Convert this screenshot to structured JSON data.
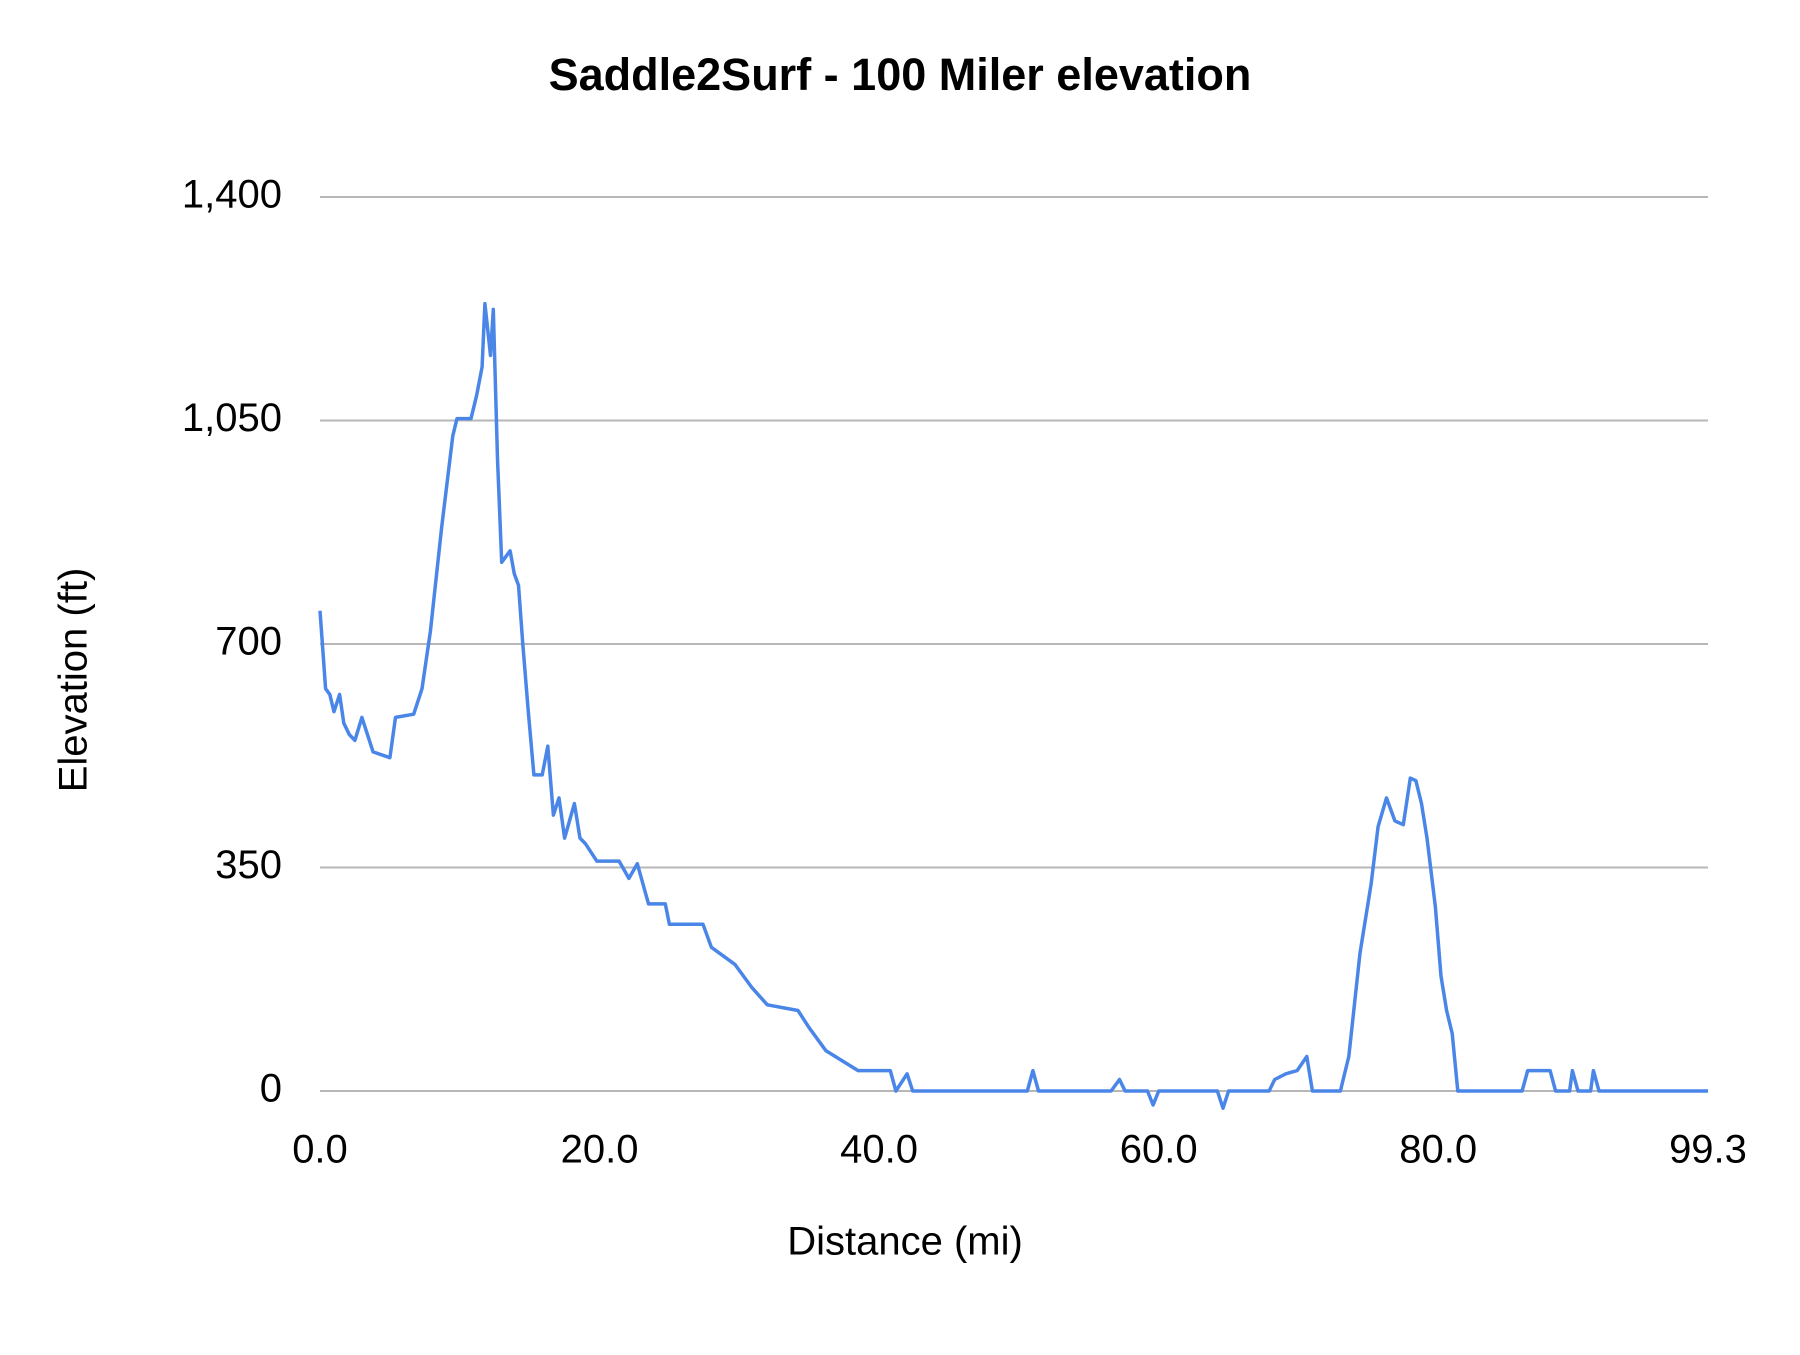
{
  "chart_data": {
    "type": "line",
    "title": "Saddle2Surf - 100 Miler elevation",
    "x_label": "Distance (mi)",
    "y_label": "Elevation (ft)",
    "color": "#4a86e8",
    "grid": true,
    "xlim": [
      0,
      99.3
    ],
    "xticks": [
      {
        "value": 0,
        "label": "0.0"
      },
      {
        "value": 20,
        "label": "20.0"
      },
      {
        "value": 40,
        "label": "40.0"
      },
      {
        "value": 60,
        "label": "60.0"
      },
      {
        "value": 80,
        "label": "80.0"
      },
      {
        "value": 99.3,
        "label": "99.3"
      }
    ],
    "ylim": [
      0,
      1400
    ],
    "yticks": [
      0,
      350,
      700,
      {
        "value": 1050,
        "label": "1,050"
      },
      {
        "value": 1400,
        "label": "1,400"
      }
    ],
    "x": [
      0,
      0.4,
      0.7,
      1.0,
      1.4,
      1.7,
      2.1,
      2.5,
      3.0,
      3.4,
      3.8,
      5.0,
      5.4,
      6.7,
      7.3,
      7.9,
      8.7,
      9.5,
      9.8,
      10.8,
      11.2,
      11.6,
      11.8,
      12.2,
      12.4,
      12.7,
      13.0,
      13.6,
      13.9,
      14.2,
      14.5,
      14.9,
      15.3,
      15.9,
      16.3,
      16.7,
      17.1,
      17.5,
      18.2,
      18.6,
      19.0,
      19.8,
      21.4,
      22.1,
      22.7,
      23.5,
      24.7,
      25.0,
      27.4,
      28.0,
      29.7,
      30.9,
      32.0,
      34.2,
      35.0,
      36.2,
      38.5,
      40.8,
      41.2,
      42.0,
      42.4,
      50.6,
      51.0,
      51.4,
      56.6,
      57.2,
      57.6,
      59.2,
      59.6,
      60.0,
      64.2,
      64.6,
      65.0,
      67.9,
      68.3,
      69.1,
      69.9,
      70.6,
      71.0,
      73.0,
      73.6,
      74.4,
      75.2,
      75.7,
      76.3,
      76.9,
      77.5,
      78.0,
      78.4,
      78.8,
      79.2,
      79.8,
      80.2,
      80.6,
      81.0,
      81.4,
      86.0,
      86.4,
      88.0,
      88.4,
      89.4,
      89.6,
      90.0,
      90.9,
      91.1,
      91.5,
      99.3
    ],
    "values": [
      752,
      630,
      621,
      594,
      621,
      576,
      558,
      549,
      585,
      558,
      531,
      522,
      585,
      590,
      630,
      720,
      882,
      1026,
      1053,
      1053,
      1089,
      1134,
      1233,
      1152,
      1224,
      990,
      828,
      846,
      810,
      792,
      702,
      594,
      495,
      495,
      540,
      432,
      459,
      396,
      450,
      396,
      387,
      360,
      360,
      333,
      356,
      293,
      293,
      261,
      261,
      225,
      198,
      162,
      135,
      126,
      99,
      63,
      32,
      32,
      0,
      27,
      0,
      0,
      32,
      0,
      0,
      18,
      0,
      0,
      -22,
      0,
      0,
      -27,
      0,
      0,
      18,
      27,
      32,
      54,
      0,
      0,
      54,
      216,
      324,
      414,
      459,
      423,
      417,
      490,
      486,
      450,
      396,
      288,
      180,
      126,
      90,
      0,
      0,
      32,
      32,
      0,
      0,
      32,
      0,
      0,
      32,
      0,
      0
    ]
  }
}
